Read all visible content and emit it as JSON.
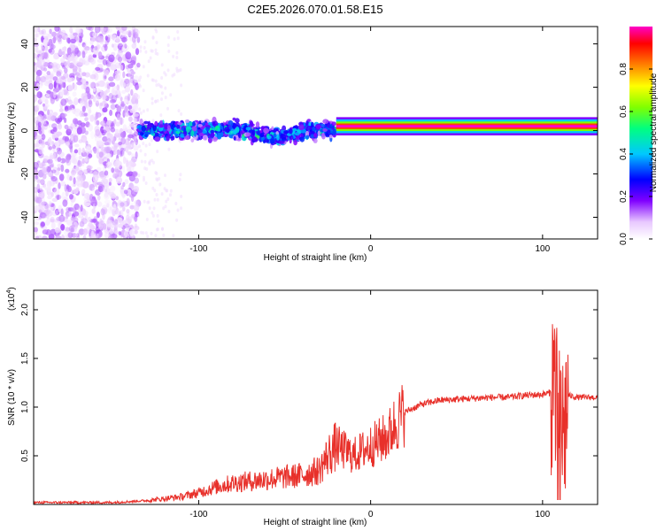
{
  "title": "C2E5.2026.070.01.58.E15",
  "chart_data": [
    {
      "type": "heatmap",
      "title": "C2E5.2026.070.01.58.E15",
      "xlabel": "Height of straight line (km)",
      "ylabel": "Frequency (Hz)",
      "xlim": [
        -196,
        132
      ],
      "ylim": [
        -50,
        48
      ],
      "xticks": [
        -100,
        0,
        100
      ],
      "yticks": [
        -40,
        -20,
        0,
        20,
        40
      ],
      "colorbar": {
        "label": "Normalized spectral amplitude",
        "range": [
          0.0,
          1.0
        ],
        "ticks": [
          0.0,
          0.2,
          0.4,
          0.6,
          0.8
        ],
        "tick_labels": [
          "0.0",
          "0.2",
          "0.4",
          "0.6",
          "0.8"
        ],
        "colormap": [
          "#ffffff",
          "#e8c8ff",
          "#8000ff",
          "#0000ff",
          "#00c8ff",
          "#00ff80",
          "#80ff00",
          "#ffff00",
          "#ff8000",
          "#ff0000",
          "#ff00c8"
        ]
      },
      "description_bands": [
        {
          "x_range": [
            -196,
            -135
          ],
          "freq_range": [
            -50,
            48
          ],
          "amplitude": 0.1
        },
        {
          "x_range": [
            -135,
            -20
          ],
          "freq_center": 0,
          "freq_halfwidth": 5,
          "amplitude": 0.35
        },
        {
          "x_range": [
            -20,
            132
          ],
          "freq_center": 2,
          "freq_halfwidth": 2,
          "amplitude": 0.95
        }
      ]
    },
    {
      "type": "line",
      "xlabel": "Height of straight line (km)",
      "ylabel": "SNR (10 * v/v)",
      "yscale_label": "(x10",
      "yscale_exponent": "4",
      "xlim": [
        -196,
        132
      ],
      "ylim": [
        0,
        2.2
      ],
      "xticks": [
        -100,
        0,
        100
      ],
      "yticks": [
        0.5,
        1.0,
        1.5,
        2.0
      ],
      "ytick_labels": [
        "0.5",
        "1.0",
        "1.5",
        "2.0"
      ],
      "color": "#e8302a",
      "series": [
        {
          "name": "SNR",
          "x": [
            -196,
            -150,
            -130,
            -120,
            -110,
            -100,
            -90,
            -80,
            -70,
            -60,
            -50,
            -40,
            -30,
            -25,
            -20,
            -15,
            -10,
            -5,
            0,
            5,
            10,
            15,
            20,
            30,
            40,
            50,
            60,
            70,
            80,
            90,
            100,
            105,
            108,
            110,
            112,
            115,
            120,
            132
          ],
          "values": [
            0.02,
            0.02,
            0.04,
            0.06,
            0.08,
            0.12,
            0.18,
            0.22,
            0.24,
            0.26,
            0.28,
            0.3,
            0.35,
            0.5,
            0.6,
            0.55,
            0.5,
            0.55,
            0.6,
            0.65,
            0.7,
            0.85,
            0.95,
            1.03,
            1.07,
            1.08,
            1.09,
            1.1,
            1.1,
            1.12,
            1.13,
            1.15,
            1.35,
            1.1,
            0.7,
            1.12,
            1.1,
            1.1
          ]
        }
      ]
    }
  ]
}
